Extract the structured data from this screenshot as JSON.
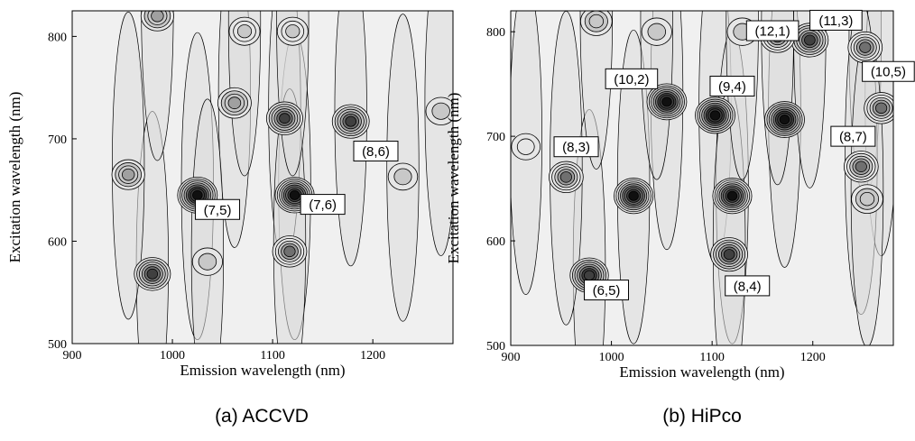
{
  "chart_data": [
    {
      "type": "heatmap",
      "subtype": "contour",
      "caption": "(a) ACCVD",
      "xlabel": "Emission wavelength (nm)",
      "ylabel": "Excitation wavelength (nm)",
      "xlim": [
        900,
        1280
      ],
      "ylim": [
        500,
        825
      ],
      "xticks": [
        900,
        1000,
        1100,
        1200
      ],
      "yticks": [
        500,
        600,
        700,
        800
      ],
      "colormap": [
        "#ffffff",
        "#e6e6e6",
        "#c8c8c8",
        "#a0a0a0",
        "#707070",
        "#404040",
        "#101010"
      ],
      "peaks": [
        {
          "x": 1025,
          "y": 645,
          "intensity": 1.0
        },
        {
          "x": 1122,
          "y": 645,
          "intensity": 0.95
        },
        {
          "x": 1178,
          "y": 717,
          "intensity": 0.8
        },
        {
          "x": 1112,
          "y": 720,
          "intensity": 0.75
        },
        {
          "x": 1117,
          "y": 590,
          "intensity": 0.6
        },
        {
          "x": 980,
          "y": 568,
          "intensity": 0.75
        },
        {
          "x": 1062,
          "y": 735,
          "intensity": 0.55
        },
        {
          "x": 956,
          "y": 665,
          "intensity": 0.5
        },
        {
          "x": 1035,
          "y": 580,
          "intensity": 0.3
        },
        {
          "x": 1072,
          "y": 805,
          "intensity": 0.35
        },
        {
          "x": 1120,
          "y": 805,
          "intensity": 0.35
        },
        {
          "x": 985,
          "y": 820,
          "intensity": 0.5
        },
        {
          "x": 1268,
          "y": 727,
          "intensity": 0.3
        },
        {
          "x": 1230,
          "y": 663,
          "intensity": 0.25
        }
      ],
      "labels": [
        {
          "text": "(7,5)",
          "x": 1045,
          "y": 631
        },
        {
          "text": "(7,6)",
          "x": 1150,
          "y": 636
        },
        {
          "text": "(8,6)",
          "x": 1203,
          "y": 688
        }
      ]
    },
    {
      "type": "heatmap",
      "subtype": "contour",
      "caption": "(b) HiPco",
      "xlabel": "Emission wavelength (nm)",
      "ylabel": "Excitation wavelength (nm)",
      "xlim": [
        900,
        1280
      ],
      "ylim": [
        500,
        820
      ],
      "xticks": [
        900,
        1000,
        1100,
        1200
      ],
      "yticks": [
        500,
        600,
        700,
        800
      ],
      "colormap": [
        "#ffffff",
        "#e6e6e6",
        "#c8c8c8",
        "#a0a0a0",
        "#707070",
        "#404040",
        "#101010"
      ],
      "peaks": [
        {
          "x": 1055,
          "y": 733,
          "intensity": 1.0
        },
        {
          "x": 1103,
          "y": 720,
          "intensity": 1.0
        },
        {
          "x": 1172,
          "y": 716,
          "intensity": 1.0
        },
        {
          "x": 1022,
          "y": 643,
          "intensity": 0.95
        },
        {
          "x": 1120,
          "y": 643,
          "intensity": 0.95
        },
        {
          "x": 978,
          "y": 567,
          "intensity": 0.9
        },
        {
          "x": 1117,
          "y": 587,
          "intensity": 0.8
        },
        {
          "x": 955,
          "y": 661,
          "intensity": 0.6
        },
        {
          "x": 1197,
          "y": 792,
          "intensity": 0.8
        },
        {
          "x": 1165,
          "y": 795,
          "intensity": 0.6
        },
        {
          "x": 1252,
          "y": 785,
          "intensity": 0.6
        },
        {
          "x": 1268,
          "y": 727,
          "intensity": 0.6
        },
        {
          "x": 1248,
          "y": 671,
          "intensity": 0.6
        },
        {
          "x": 1254,
          "y": 640,
          "intensity": 0.4
        },
        {
          "x": 985,
          "y": 810,
          "intensity": 0.4
        },
        {
          "x": 1045,
          "y": 800,
          "intensity": 0.3
        },
        {
          "x": 1130,
          "y": 800,
          "intensity": 0.3
        },
        {
          "x": 915,
          "y": 690,
          "intensity": 0.2
        }
      ],
      "labels": [
        {
          "text": "(12,1)",
          "x": 1160,
          "y": 801
        },
        {
          "text": "(11,3)",
          "x": 1223,
          "y": 811
        },
        {
          "text": "(10,2)",
          "x": 1020,
          "y": 755
        },
        {
          "text": "(9,4)",
          "x": 1120,
          "y": 748
        },
        {
          "text": "(10,5)",
          "x": 1275,
          "y": 762
        },
        {
          "text": "(8,3)",
          "x": 965,
          "y": 690
        },
        {
          "text": "(8,7)",
          "x": 1240,
          "y": 700
        },
        {
          "text": "(6,5)",
          "x": 995,
          "y": 553
        },
        {
          "text": "(8,4)",
          "x": 1135,
          "y": 557
        }
      ]
    }
  ]
}
